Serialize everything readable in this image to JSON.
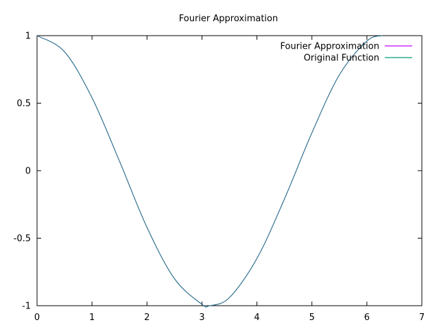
{
  "chart_data": {
    "type": "line",
    "title": "Fourier Approximation",
    "xlabel": "",
    "ylabel": "",
    "xlim": [
      0,
      7
    ],
    "ylim": [
      -1,
      1
    ],
    "x_ticks": [
      0,
      1,
      2,
      3,
      4,
      5,
      6,
      7
    ],
    "y_ticks": [
      -1,
      -0.5,
      0,
      0.5,
      1
    ],
    "x_tick_labels": [
      "0",
      "1",
      "2",
      "3",
      "4",
      "5",
      "6",
      "7"
    ],
    "y_tick_labels": [
      "-1",
      "-0.5",
      "0",
      "0.5",
      "1"
    ],
    "grid": false,
    "legend_position": "top-right",
    "x": [
      0,
      0.5,
      1.0,
      1.5,
      2.0,
      2.5,
      3.0,
      3.14,
      3.5,
      4.0,
      4.5,
      5.0,
      5.5,
      6.0,
      6.28
    ],
    "series": [
      {
        "name": "Fourier Approximation",
        "color": "#c000ff",
        "values": [
          1,
          0.88,
          0.54,
          0.07,
          -0.42,
          -0.8,
          -0.99,
          -1,
          -0.94,
          -0.65,
          -0.21,
          0.28,
          0.71,
          0.96,
          1
        ]
      },
      {
        "name": "Original Function",
        "color": "#009e73",
        "values": [
          1,
          0.88,
          0.54,
          0.07,
          -0.42,
          -0.8,
          -0.99,
          -1,
          -0.94,
          -0.65,
          -0.21,
          0.28,
          0.71,
          0.96,
          1
        ]
      }
    ],
    "rendered_overlap_color": "#2d6e8e"
  }
}
